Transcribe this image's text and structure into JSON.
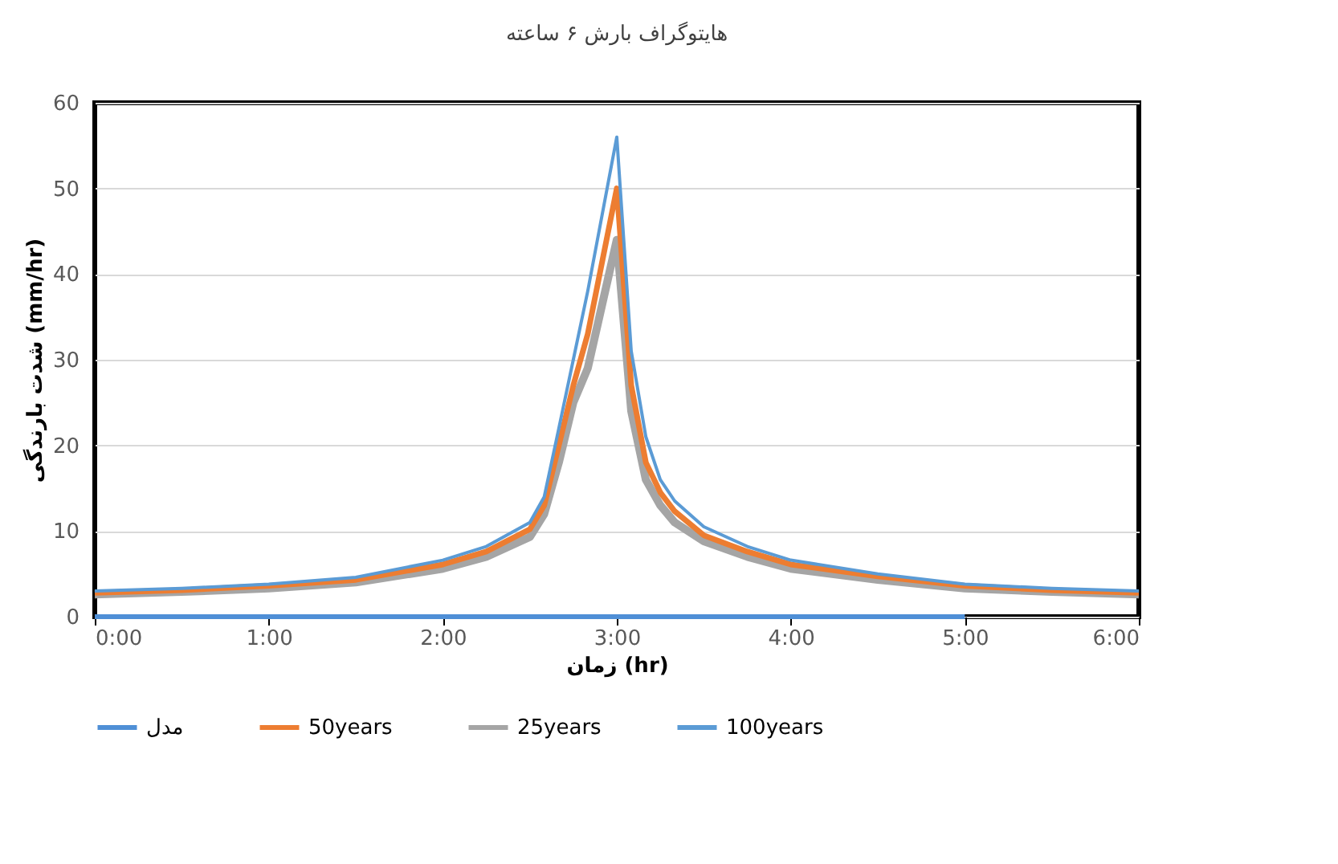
{
  "chart_data": {
    "type": "line",
    "title": "هایتوگراف بارش ۶ ساعته",
    "xlabel": "زمان (hr)",
    "ylabel": "شدت بارندگی (mm/hr)",
    "xlim": [
      0,
      6
    ],
    "xticks": [
      {
        "value": 0,
        "label": "0:00"
      },
      {
        "value": 1,
        "label": "1:00"
      },
      {
        "value": 2,
        "label": "2:00"
      },
      {
        "value": 3,
        "label": "3:00"
      },
      {
        "value": 4,
        "label": "4:00"
      },
      {
        "value": 5,
        "label": "5:00"
      },
      {
        "value": 6,
        "label": "6:00"
      }
    ],
    "ylim": [
      0,
      60
    ],
    "yticks": [
      0,
      10,
      20,
      30,
      40,
      50,
      60
    ],
    "grid": "y",
    "legend": "bottom",
    "marker": "none",
    "line_style": "solid",
    "x": [
      0,
      0.5,
      1,
      1.5,
      2,
      2.25,
      2.5,
      2.583,
      2.667,
      2.75,
      2.833,
      3,
      3.083,
      3.167,
      3.25,
      3.333,
      3.5,
      3.75,
      4,
      4.5,
      5,
      5.5,
      6
    ],
    "series": [
      {
        "name": "مدل",
        "color": "#4f8fd6",
        "x": [
          0,
          5
        ],
        "values": [
          0,
          0
        ]
      },
      {
        "name": "50years",
        "color": "#ed7d31",
        "values": [
          2.8,
          3.1,
          3.6,
          4.3,
          6.1,
          7.6,
          10.2,
          13,
          20,
          27,
          33,
          50,
          27,
          18,
          14.5,
          12.3,
          9.5,
          7.6,
          6.1,
          4.7,
          3.6,
          3.1,
          2.8
        ]
      },
      {
        "name": "25years",
        "color": "#a5a5a5",
        "values": [
          2.6,
          2.9,
          3.3,
          4.0,
          5.6,
          7.0,
          9.3,
          12,
          18,
          25,
          29,
          44,
          24,
          16,
          13,
          11,
          8.8,
          7,
          5.6,
          4.3,
          3.3,
          2.9,
          2.6
        ]
      },
      {
        "name": "100years",
        "color": "#5b9bd5",
        "values": [
          3.0,
          3.3,
          3.8,
          4.6,
          6.6,
          8.2,
          11,
          14,
          22,
          30,
          38,
          56,
          31,
          21,
          16,
          13.5,
          10.5,
          8.2,
          6.6,
          5.0,
          3.8,
          3.3,
          3.0
        ]
      }
    ]
  }
}
